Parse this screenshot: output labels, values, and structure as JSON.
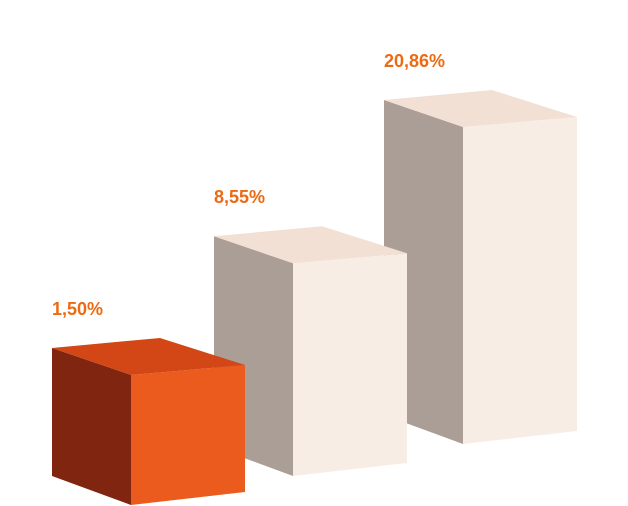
{
  "chart_data": {
    "type": "bar",
    "style": "3d-columns",
    "categories": [
      "",
      "",
      ""
    ],
    "values": [
      1.5,
      8.55,
      20.86
    ],
    "data_labels": [
      "1,50%",
      "8,55%",
      "20,86%"
    ],
    "grid": false,
    "legend": "none",
    "colors": {
      "label": "#EE6A12",
      "highlight": {
        "top": "#D34616",
        "front": "#EC5B1E",
        "side": "#7F2510"
      },
      "default": {
        "top": "#F2E0D5",
        "front": "#F8EDE4",
        "side": "#AA9E96"
      }
    },
    "highlighted_index": 0
  }
}
